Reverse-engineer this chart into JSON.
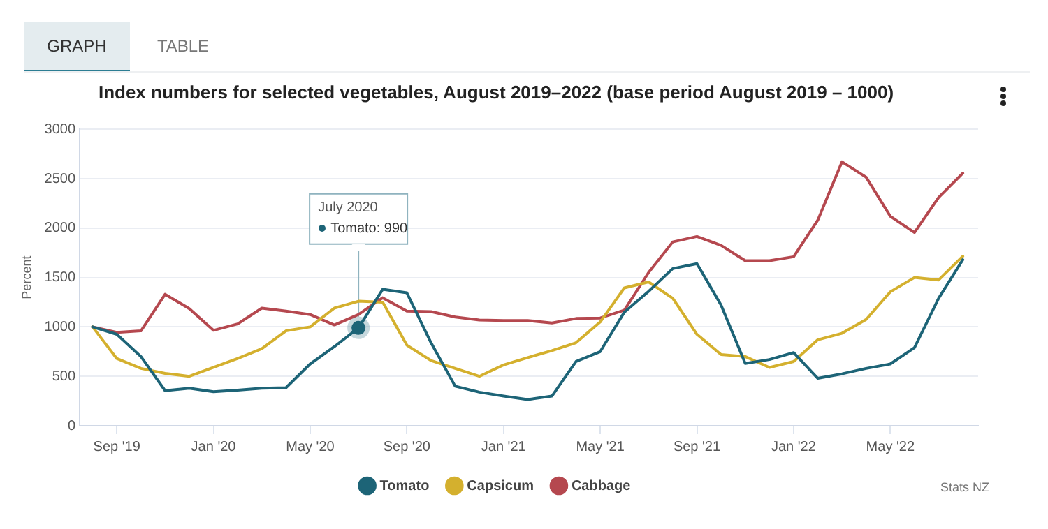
{
  "chart_data": {
    "type": "line",
    "title": "Index numbers for selected vegetables, August 2019–2022 (base period August 2019 – 1000)",
    "ylabel": "Percent",
    "x": [
      "2019-08",
      "2019-09",
      "2019-10",
      "2019-11",
      "2019-12",
      "2020-01",
      "2020-02",
      "2020-03",
      "2020-04",
      "2020-05",
      "2020-06",
      "2020-07",
      "2020-08",
      "2020-09",
      "2020-10",
      "2020-11",
      "2020-12",
      "2021-01",
      "2021-02",
      "2021-03",
      "2021-04",
      "2021-05",
      "2021-06",
      "2021-07",
      "2021-08",
      "2021-09",
      "2021-10",
      "2021-11",
      "2021-12",
      "2022-01",
      "2022-02",
      "2022-03",
      "2022-04",
      "2022-05",
      "2022-06",
      "2022-07",
      "2022-08"
    ],
    "series": [
      {
        "name": "Tomato",
        "color": "#1d6477",
        "values": [
          1000,
          925,
          700,
          355,
          380,
          345,
          360,
          380,
          385,
          625,
          800,
          990,
          1380,
          1345,
          840,
          400,
          340,
          300,
          265,
          300,
          650,
          750,
          1150,
          1360,
          1590,
          1640,
          1220,
          630,
          670,
          740,
          480,
          525,
          580,
          625,
          790,
          1290,
          1680
        ]
      },
      {
        "name": "Capsicum",
        "color": "#d4b02e",
        "values": [
          1000,
          680,
          580,
          530,
          500,
          590,
          680,
          780,
          960,
          1000,
          1190,
          1260,
          1250,
          815,
          660,
          580,
          500,
          615,
          690,
          760,
          840,
          1050,
          1395,
          1455,
          1290,
          925,
          720,
          700,
          590,
          650,
          870,
          935,
          1075,
          1355,
          1500,
          1475,
          1715
        ]
      },
      {
        "name": "Cabbage",
        "color": "#b5484f",
        "values": [
          1000,
          945,
          960,
          1330,
          1185,
          965,
          1030,
          1190,
          1160,
          1125,
          1020,
          1125,
          1295,
          1160,
          1155,
          1100,
          1070,
          1065,
          1065,
          1040,
          1085,
          1090,
          1170,
          1550,
          1860,
          1915,
          1825,
          1670,
          1670,
          1710,
          2080,
          2670,
          2515,
          2120,
          1955,
          2310,
          2555
        ]
      }
    ],
    "xlim": [
      "2019-07-15",
      "2022-08-20"
    ],
    "xticks": [
      {
        "value": "2019-09",
        "label": "Sep '19"
      },
      {
        "value": "2020-01",
        "label": "Jan '20"
      },
      {
        "value": "2020-05",
        "label": "May '20"
      },
      {
        "value": "2020-09",
        "label": "Sep '20"
      },
      {
        "value": "2021-01",
        "label": "Jan '21"
      },
      {
        "value": "2021-05",
        "label": "May '21"
      },
      {
        "value": "2021-09",
        "label": "Sep '21"
      },
      {
        "value": "2022-01",
        "label": "Jan '22"
      },
      {
        "value": "2022-05",
        "label": "May '22"
      }
    ],
    "ylim": [
      0,
      3000
    ],
    "yticks": [
      0,
      500,
      1000,
      1500,
      2000,
      2500,
      3000
    ],
    "grid": "y",
    "legend": "bottom",
    "marker": "none",
    "line_style": "solid",
    "annotations": [
      "GRAPH",
      "TABLE",
      "Stats NZ",
      {
        "text": "July 2020\nTomato: 990",
        "x": "2020-07",
        "y": 990
      }
    ]
  }
}
